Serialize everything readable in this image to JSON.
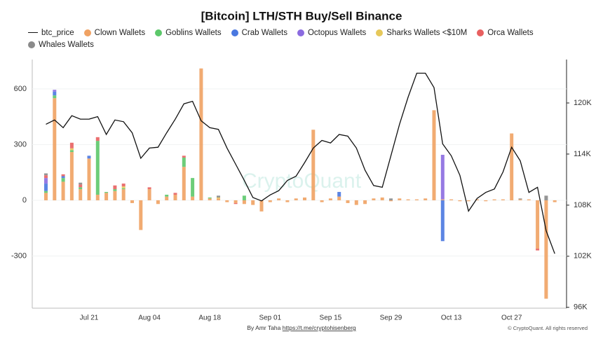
{
  "chart_data": {
    "type": "bar",
    "stacked": true,
    "title": "[Bitcoin] LTH/STH Buy/Sell Binance",
    "categories": [
      null,
      null,
      null,
      null,
      null,
      "Jul 21",
      null,
      null,
      null,
      null,
      null,
      null,
      "Aug 04",
      null,
      null,
      null,
      null,
      null,
      null,
      "Aug 18",
      null,
      null,
      null,
      null,
      null,
      null,
      "Sep 01",
      null,
      null,
      null,
      null,
      null,
      null,
      "Sep 15",
      null,
      null,
      null,
      null,
      null,
      null,
      "Sep 29",
      null,
      null,
      null,
      null,
      null,
      null,
      "Oct 13",
      null,
      null,
      null,
      null,
      null,
      null,
      "Oct 27",
      null,
      null,
      null,
      null,
      null
    ],
    "series": [
      {
        "name": "btc_price",
        "type": "line",
        "axis": "y2",
        "color": "#111111",
        "values": [
          117500,
          118000,
          117100,
          118500,
          118100,
          118100,
          118400,
          116300,
          118000,
          117800,
          116500,
          113500,
          114700,
          114800,
          116500,
          118100,
          119900,
          120200,
          117900,
          117100,
          116900,
          114700,
          112800,
          110900,
          108900,
          108500,
          109200,
          109700,
          110900,
          111400,
          113000,
          114700,
          115600,
          115300,
          116300,
          116100,
          114700,
          112100,
          110300,
          110100,
          113800,
          117500,
          120700,
          123500,
          123500,
          121800,
          115200,
          113800,
          111500,
          107300,
          108800,
          109500,
          109900,
          111900,
          114800,
          113200,
          109500,
          110100,
          105000,
          102300
        ]
      },
      {
        "name": "Clown Wallets",
        "color": "#f0a263",
        "values": [
          40,
          550,
          100,
          260,
          60,
          225,
          30,
          40,
          50,
          60,
          -15,
          -160,
          60,
          -20,
          20,
          30,
          180,
          20,
          710,
          10,
          10,
          -10,
          -15,
          -20,
          -25,
          -60,
          -10,
          10,
          -10,
          10,
          15,
          380,
          -10,
          10,
          20,
          -15,
          -25,
          -20,
          10,
          15,
          -5,
          10,
          5,
          5,
          10,
          485,
          5,
          5,
          -5,
          -5,
          5,
          -5,
          5,
          5,
          360,
          5,
          5,
          -260,
          -530,
          -10
        ]
      },
      {
        "name": "Goblins Wallets",
        "color": "#5cc86a",
        "values": [
          10,
          15,
          20,
          10,
          10,
          0,
          290,
          5,
          10,
          5,
          0,
          0,
          0,
          0,
          10,
          0,
          50,
          100,
          0,
          5,
          0,
          0,
          0,
          25,
          0,
          0,
          0,
          0,
          0,
          0,
          0,
          0,
          0,
          0,
          0,
          0,
          0,
          0,
          0,
          0,
          0,
          0,
          0,
          0,
          0,
          0,
          0,
          0,
          0,
          0,
          0,
          0,
          0,
          0,
          0,
          0,
          0,
          0,
          0,
          0
        ]
      },
      {
        "name": "Crab Wallets",
        "color": "#4a78e0",
        "values": [
          40,
          20,
          10,
          0,
          0,
          15,
          0,
          0,
          0,
          0,
          0,
          0,
          0,
          0,
          0,
          0,
          0,
          0,
          0,
          0,
          0,
          0,
          0,
          0,
          0,
          0,
          0,
          0,
          0,
          0,
          0,
          0,
          0,
          0,
          25,
          0,
          0,
          0,
          0,
          0,
          0,
          0,
          0,
          0,
          0,
          0,
          -220,
          0,
          0,
          0,
          0,
          0,
          0,
          0,
          0,
          0,
          0,
          0,
          0,
          0
        ]
      },
      {
        "name": "Octopus Wallets",
        "color": "#8b6be0",
        "values": [
          30,
          10,
          0,
          0,
          0,
          0,
          0,
          0,
          0,
          0,
          0,
          0,
          0,
          0,
          0,
          0,
          0,
          0,
          0,
          0,
          0,
          0,
          0,
          0,
          0,
          0,
          0,
          0,
          0,
          0,
          0,
          0,
          0,
          0,
          0,
          0,
          0,
          0,
          0,
          0,
          0,
          0,
          0,
          0,
          0,
          0,
          240,
          0,
          0,
          0,
          0,
          0,
          0,
          0,
          0,
          0,
          0,
          0,
          0,
          0
        ]
      },
      {
        "name": "Sharks Wallets <$10M",
        "color": "#e6c85a",
        "values": [
          0,
          0,
          0,
          10,
          0,
          0,
          0,
          0,
          0,
          10,
          0,
          0,
          0,
          0,
          0,
          0,
          0,
          0,
          0,
          0,
          5,
          0,
          0,
          0,
          0,
          0,
          0,
          0,
          0,
          0,
          0,
          0,
          0,
          0,
          0,
          0,
          0,
          0,
          0,
          0,
          0,
          0,
          0,
          0,
          0,
          0,
          0,
          0,
          0,
          0,
          0,
          0,
          0,
          0,
          0,
          0,
          0,
          0,
          0,
          0
        ]
      },
      {
        "name": "Orca Wallets",
        "color": "#e86060",
        "values": [
          15,
          0,
          10,
          30,
          15,
          0,
          20,
          0,
          20,
          15,
          0,
          0,
          10,
          0,
          0,
          10,
          10,
          0,
          0,
          0,
          0,
          0,
          -5,
          0,
          0,
          0,
          0,
          0,
          0,
          0,
          0,
          0,
          0,
          0,
          0,
          0,
          0,
          0,
          0,
          0,
          0,
          0,
          0,
          0,
          0,
          0,
          0,
          0,
          0,
          0,
          0,
          0,
          0,
          0,
          0,
          0,
          0,
          -10,
          0,
          0
        ]
      },
      {
        "name": "Whales Wallets",
        "color": "#8a8a8a",
        "values": [
          10,
          0,
          0,
          0,
          10,
          0,
          0,
          0,
          0,
          0,
          0,
          0,
          0,
          0,
          0,
          0,
          0,
          0,
          0,
          0,
          10,
          0,
          0,
          0,
          0,
          0,
          0,
          0,
          0,
          0,
          0,
          0,
          0,
          0,
          0,
          0,
          0,
          0,
          0,
          0,
          10,
          0,
          0,
          0,
          0,
          0,
          0,
          0,
          0,
          0,
          0,
          0,
          0,
          0,
          0,
          5,
          0,
          0,
          25,
          0
        ]
      }
    ],
    "ylim": [
      -581,
      758
    ],
    "yticks": [
      -300,
      0,
      300,
      600
    ],
    "y2lim": [
      95900,
      125100
    ],
    "y2ticks": [
      {
        "value": 96000,
        "label": "96K"
      },
      {
        "value": 102000,
        "label": "102K"
      },
      {
        "value": 108000,
        "label": "108K"
      },
      {
        "value": 114000,
        "label": "114K"
      },
      {
        "value": 120000,
        "label": "120K"
      }
    ],
    "grid": true,
    "legend": "top",
    "watermark": "CryptoQuant",
    "footer": {
      "author": "By Amr Taha",
      "link": "https://t.me/cryptohisenberg",
      "rights": "© CryptoQuant. All rights reserved"
    }
  }
}
